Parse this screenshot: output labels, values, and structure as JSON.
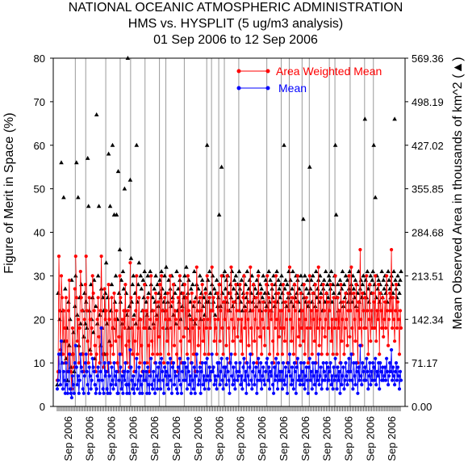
{
  "chart_data": {
    "type": "scatter",
    "title": [
      "NATIONAL OCEANIC ATMOSPHERIC ADMINISTRATION",
      "HMS vs. HYSPLIT (5 ug/m3 analysis)",
      "01 Sep 2006 to 12 Sep 2006"
    ],
    "ylabel": "Figure of Merit in Space (%)",
    "y2label": "Mean Observed Area in thousands of km^2 (▲)",
    "ylim": [
      0,
      80
    ],
    "y2lim": [
      0,
      569.36
    ],
    "yticks": [
      "0",
      "10",
      "20",
      "30",
      "40",
      "50",
      "60",
      "70",
      "80"
    ],
    "y2ticks": [
      "0.00",
      "71.17",
      "142.34",
      "213.51",
      "284.68",
      "355.85",
      "427.02",
      "498.19",
      "569.36"
    ],
    "x_tick_labels": [
      "Sep 2006",
      "Sep 2006",
      "Sep 2006",
      "Sep 2006",
      "Sep 2006",
      "Sep 2006",
      "Sep 2006",
      "Sep 2006",
      "Sep 2006",
      "Sep 2006",
      "Sep 2006",
      "Sep 2006",
      "Sep 2006",
      "Sep 2006",
      "Sep 2006",
      "Sep 2006"
    ],
    "n_points": 430,
    "segment_breaks": [
      23,
      36,
      61,
      79,
      92,
      110,
      128,
      136,
      159,
      187,
      193,
      202,
      209,
      227,
      262,
      280,
      290,
      306,
      315,
      340,
      347,
      366,
      384,
      395
    ],
    "legend": {
      "placement": "top-right"
    },
    "series": [
      {
        "name": "Area Weighted Mean",
        "color": "#ff0000",
        "marker": "circle",
        "values": [
          6,
          8,
          34.5,
          22,
          13,
          30,
          25,
          12,
          22,
          18,
          10,
          25,
          15,
          8,
          22,
          29,
          12,
          8,
          4,
          18,
          12,
          9,
          27,
          34.5,
          25,
          15,
          20,
          10,
          18,
          31,
          25,
          22,
          12,
          8,
          20,
          28,
          34.5,
          22,
          15,
          10,
          25,
          20,
          12,
          18,
          30,
          26,
          22,
          14,
          8,
          12,
          20,
          25,
          16,
          10,
          22,
          34.5,
          18,
          12,
          9,
          27,
          20,
          22,
          12,
          8,
          28,
          20,
          10,
          14,
          25,
          18,
          12,
          26,
          20,
          15,
          22,
          10,
          8,
          16,
          30,
          25,
          12,
          20,
          8,
          22,
          18,
          28,
          14,
          10,
          22,
          15,
          9,
          33,
          25,
          18,
          12,
          20,
          8,
          15,
          22,
          30,
          12,
          18,
          25,
          10,
          20,
          14,
          8,
          22,
          18,
          28,
          18,
          22,
          10,
          25,
          14,
          8,
          20,
          30,
          15,
          12,
          22,
          18,
          10,
          26,
          20,
          12,
          24,
          16,
          28,
          12,
          30,
          22,
          18,
          10,
          25,
          20,
          22,
          15,
          26,
          12,
          20,
          30,
          18,
          10,
          24,
          28,
          14,
          22,
          20,
          12,
          8,
          25,
          18,
          30,
          15,
          10,
          22,
          26,
          16,
          28,
          18,
          25,
          12,
          30,
          22,
          15,
          20,
          10,
          26,
          18,
          12,
          24,
          8,
          20,
          32,
          22,
          14,
          18,
          25,
          10,
          22,
          28,
          15,
          20,
          12,
          26,
          18,
          30,
          20,
          12,
          25,
          18,
          22,
          32,
          22,
          25,
          15,
          20,
          18,
          12,
          26,
          20,
          28,
          15,
          22,
          30,
          18,
          12,
          24,
          20,
          25,
          14,
          30,
          22,
          18,
          10,
          26,
          32,
          20,
          15,
          24,
          18,
          12,
          28,
          22,
          16,
          20,
          22,
          28,
          15,
          20,
          12,
          25,
          30,
          18,
          22,
          10,
          26,
          20,
          14,
          24,
          32,
          18,
          12,
          22,
          28,
          15,
          20,
          25,
          10,
          18,
          30,
          22,
          16,
          26,
          12,
          20,
          24,
          18,
          14,
          22,
          28,
          30,
          18,
          25,
          12,
          22,
          20,
          28,
          15,
          10,
          24,
          18,
          30,
          20,
          12,
          26,
          16,
          22,
          18,
          22,
          12,
          28,
          18,
          15,
          24,
          20,
          10,
          26,
          22,
          32,
          20,
          15,
          25,
          18,
          12,
          28,
          22,
          10,
          24,
          30,
          16,
          20,
          14,
          26,
          18,
          22,
          15,
          28,
          12,
          20,
          25,
          18,
          10,
          24,
          30,
          18,
          22,
          12,
          26,
          20,
          15,
          28,
          10,
          22,
          18,
          32,
          14,
          20,
          25,
          12,
          18,
          28,
          22,
          16,
          20,
          26,
          12,
          24,
          18,
          22,
          28,
          15,
          20,
          12,
          25,
          18,
          30,
          20,
          12,
          25,
          18,
          22,
          10,
          28,
          15,
          20,
          24,
          12,
          18,
          26,
          20,
          14,
          22,
          30,
          16,
          22,
          32,
          18,
          12,
          26,
          20,
          15,
          28,
          22,
          10,
          24,
          18,
          36,
          20,
          14,
          26,
          22,
          18,
          25,
          18,
          30,
          22,
          12,
          20,
          28,
          15,
          22,
          18,
          26,
          24,
          18,
          30,
          15,
          22,
          20,
          28,
          12,
          26,
          22,
          18,
          25,
          16,
          20,
          24,
          18,
          30,
          22,
          14,
          20,
          26,
          22,
          36,
          18,
          25,
          20,
          15,
          22,
          28,
          18,
          24,
          20,
          12,
          22,
          18
        ]
      },
      {
        "name": "Mean",
        "color": "#0000ff",
        "marker": "circle",
        "values": [
          4,
          6,
          12,
          8,
          5,
          15,
          10,
          4,
          8,
          6,
          3,
          10,
          5,
          3,
          8,
          12,
          4,
          3,
          2,
          7,
          5,
          3,
          10,
          14,
          9,
          5,
          7,
          3,
          6,
          12,
          9,
          8,
          4,
          3,
          7,
          10,
          12,
          8,
          5,
          3,
          9,
          7,
          4,
          6,
          11,
          9,
          8,
          5,
          3,
          4,
          7,
          9,
          6,
          3,
          8,
          18,
          6,
          4,
          3,
          10,
          7,
          8,
          4,
          3,
          10,
          7,
          3,
          5,
          9,
          6,
          4,
          10,
          7,
          5,
          8,
          3,
          3,
          6,
          12,
          9,
          4,
          7,
          3,
          8,
          6,
          10,
          5,
          3,
          8,
          5,
          3,
          13,
          9,
          6,
          4,
          7,
          3,
          5,
          8,
          11,
          4,
          6,
          9,
          3,
          7,
          5,
          3,
          8,
          6,
          10,
          6,
          8,
          3,
          9,
          5,
          3,
          7,
          11,
          5,
          4,
          8,
          6,
          3,
          10,
          7,
          4,
          9,
          6,
          10,
          4,
          11,
          8,
          6,
          3,
          9,
          7,
          8,
          5,
          10,
          4,
          7,
          11,
          6,
          3,
          9,
          10,
          5,
          8,
          7,
          4,
          3,
          9,
          6,
          11,
          5,
          3,
          8,
          10,
          6,
          10,
          6,
          9,
          4,
          11,
          8,
          5,
          7,
          3,
          10,
          6,
          4,
          9,
          3,
          7,
          12,
          8,
          5,
          6,
          9,
          3,
          8,
          10,
          5,
          7,
          4,
          10,
          6,
          11,
          7,
          4,
          9,
          6,
          8,
          12,
          8,
          9,
          5,
          7,
          6,
          4,
          10,
          7,
          10,
          5,
          8,
          11,
          6,
          4,
          9,
          7,
          9,
          5,
          11,
          8,
          6,
          3,
          10,
          12,
          7,
          5,
          9,
          6,
          4,
          10,
          8,
          6,
          7,
          8,
          10,
          5,
          7,
          4,
          9,
          11,
          6,
          8,
          3,
          10,
          7,
          5,
          9,
          12,
          6,
          4,
          8,
          10,
          5,
          7,
          9,
          3,
          6,
          11,
          8,
          6,
          10,
          4,
          7,
          9,
          6,
          5,
          8,
          10,
          11,
          6,
          9,
          4,
          8,
          7,
          10,
          5,
          3,
          9,
          6,
          11,
          7,
          4,
          10,
          6,
          8,
          6,
          8,
          4,
          10,
          6,
          5,
          9,
          7,
          3,
          10,
          8,
          12,
          7,
          5,
          9,
          6,
          4,
          10,
          8,
          3,
          9,
          11,
          6,
          7,
          5,
          10,
          6,
          8,
          5,
          10,
          4,
          7,
          9,
          6,
          3,
          9,
          11,
          6,
          8,
          4,
          10,
          7,
          5,
          10,
          3,
          8,
          6,
          12,
          5,
          7,
          9,
          4,
          6,
          10,
          8,
          6,
          7,
          10,
          4,
          9,
          6,
          8,
          10,
          5,
          7,
          4,
          9,
          6,
          11,
          7,
          4,
          9,
          6,
          8,
          3,
          10,
          5,
          7,
          9,
          4,
          6,
          10,
          7,
          5,
          8,
          11,
          6,
          8,
          12,
          6,
          4,
          10,
          7,
          5,
          10,
          8,
          3,
          9,
          6,
          14,
          7,
          5,
          10,
          8,
          6,
          9,
          6,
          11,
          8,
          4,
          7,
          10,
          5,
          8,
          6,
          10,
          9,
          6,
          11,
          5,
          8,
          7,
          10,
          4,
          10,
          8,
          6,
          9,
          6,
          7,
          9,
          6,
          11,
          8,
          5,
          7,
          10,
          8,
          13,
          6,
          9,
          7,
          5,
          8,
          10,
          6,
          9,
          7,
          4,
          8,
          6
        ]
      },
      {
        "name": "Mean Observed Area",
        "color": "#000000",
        "marker": "triangle",
        "axis": "right",
        "values": [
          5,
          26,
          8,
          20,
          12,
          56,
          10,
          22,
          48,
          15,
          27,
          11,
          18,
          6,
          24,
          14,
          20,
          9,
          29,
          12,
          17,
          8,
          23,
          30,
          56,
          21,
          48,
          14,
          25,
          19,
          28,
          12,
          22,
          16,
          26,
          19,
          24,
          18,
          57,
          46,
          22,
          13,
          28,
          20,
          25,
          17,
          29,
          11,
          23,
          67,
          19,
          30,
          46,
          21,
          14,
          27,
          18,
          25,
          22,
          12,
          26,
          33,
          19,
          25,
          58,
          15,
          46,
          22,
          28,
          60,
          18,
          44,
          24,
          30,
          44,
          20,
          54,
          26,
          36,
          24,
          29,
          19,
          31,
          27,
          50,
          22,
          26,
          21,
          80,
          18,
          23,
          52,
          34,
          24,
          28,
          30,
          21,
          26,
          19,
          60,
          24,
          28,
          33,
          20,
          30,
          27,
          22,
          29,
          25,
          31,
          28,
          24,
          21,
          30,
          26,
          18,
          31,
          28,
          22,
          25,
          19,
          27,
          24,
          30,
          21,
          28,
          23,
          26,
          29,
          25,
          31,
          27,
          22,
          24,
          30,
          26,
          32,
          18,
          24,
          29,
          20,
          27,
          23,
          30,
          25,
          21,
          28,
          26,
          19,
          31,
          22,
          27,
          24,
          29,
          20,
          26,
          23,
          28,
          25,
          30,
          25,
          32,
          18,
          26,
          29,
          21,
          24,
          27,
          20,
          28,
          23,
          31,
          19,
          25,
          28,
          22,
          27,
          24,
          30,
          20,
          26,
          29,
          23,
          25,
          21,
          27,
          24,
          60,
          29,
          24,
          31,
          26,
          22,
          28,
          30,
          24,
          27,
          21,
          26,
          29,
          23,
          25,
          44,
          28,
          23,
          55,
          26,
          30,
          24,
          31,
          27,
          29,
          24,
          30,
          26,
          22,
          28,
          25,
          31,
          23,
          27,
          29,
          24,
          30,
          26,
          28,
          25,
          31,
          27,
          24,
          29,
          22,
          26,
          30,
          23,
          28,
          25,
          31,
          24,
          27,
          29,
          22,
          26,
          30,
          24,
          28,
          25,
          27,
          23,
          29,
          26,
          31,
          24,
          28,
          22,
          27,
          25,
          30,
          24,
          26,
          29,
          23,
          28,
          26,
          31,
          24,
          29,
          22,
          27,
          25,
          30,
          23,
          28,
          26,
          31,
          24,
          29,
          27,
          25,
          28,
          30,
          26,
          24,
          60,
          27,
          29,
          23,
          28,
          25,
          31,
          26,
          29,
          24,
          27,
          31,
          23,
          28,
          25,
          30,
          26,
          29,
          24,
          27,
          22,
          30,
          26,
          28,
          43,
          25,
          30,
          24,
          27,
          29,
          23,
          26,
          55,
          27,
          29,
          24,
          30,
          26,
          28,
          23,
          31,
          25,
          27,
          29,
          24,
          30,
          26,
          28,
          22,
          27,
          29,
          24,
          31,
          26,
          28,
          25,
          30,
          29,
          27,
          31,
          24,
          28,
          26,
          30,
          60,
          44,
          25,
          28,
          22,
          26,
          29,
          24,
          27,
          31,
          23,
          28,
          25,
          30,
          26,
          29,
          24,
          27,
          31,
          26,
          28,
          24,
          30,
          27,
          25,
          29,
          23,
          28,
          26,
          31,
          24,
          27,
          29,
          25,
          28,
          30,
          26,
          66,
          29,
          25,
          31,
          27,
          24,
          28,
          30,
          26,
          29,
          31,
          60,
          28,
          48,
          25,
          30,
          27,
          29,
          24,
          28,
          26,
          31,
          25,
          29,
          27,
          30,
          26,
          28,
          24,
          31,
          29,
          27,
          25,
          30,
          28,
          26,
          31,
          66,
          29,
          27,
          25,
          30,
          28,
          26,
          29,
          31
        ]
      }
    ]
  }
}
